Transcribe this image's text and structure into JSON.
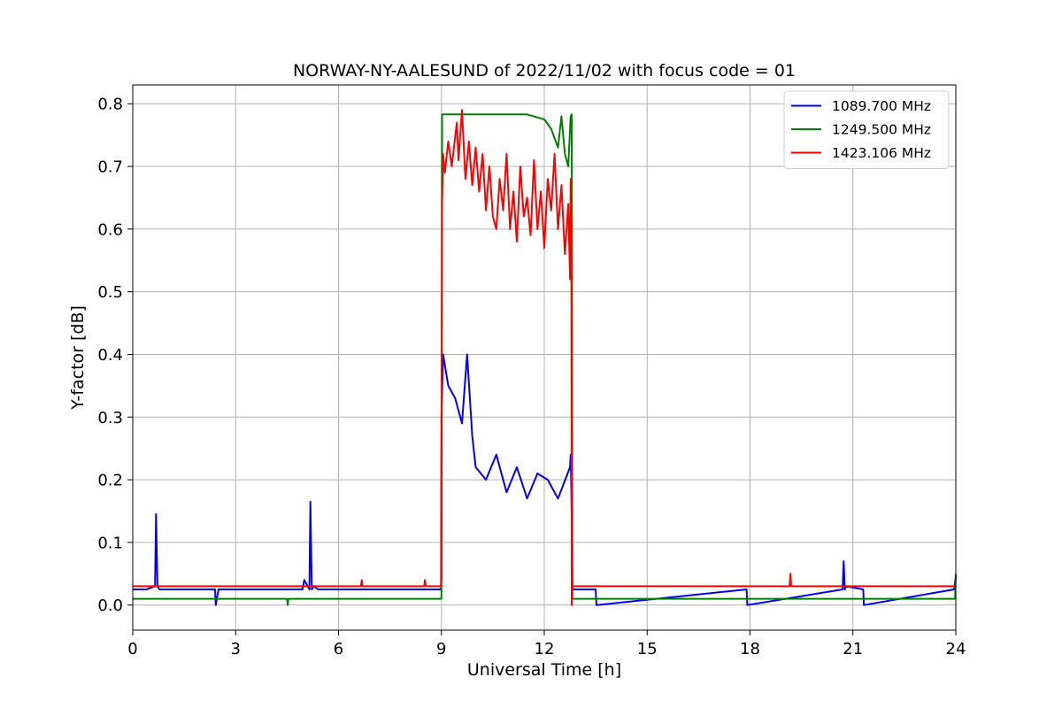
{
  "chart_data": {
    "type": "line",
    "title": "NORWAY-NY-AALESUND of 2022/11/02 with focus code = 01",
    "xlabel": "Universal Time [h]",
    "ylabel": "Y-factor [dB]",
    "xlim": [
      0,
      24
    ],
    "ylim": [
      -0.04,
      0.83
    ],
    "xticks": [
      0,
      3,
      6,
      9,
      12,
      15,
      18,
      21,
      24
    ],
    "yticks": [
      0.0,
      0.1,
      0.2,
      0.3,
      0.4,
      0.5,
      0.6,
      0.7,
      0.8
    ],
    "xtick_labels": [
      "0",
      "3",
      "6",
      "9",
      "12",
      "15",
      "18",
      "21",
      "24"
    ],
    "ytick_labels": [
      "0.0",
      "0.1",
      "0.2",
      "0.3",
      "0.4",
      "0.5",
      "0.6",
      "0.7",
      "0.8"
    ],
    "grid": true,
    "legend_position": "top-right",
    "series": [
      {
        "name": "1089.700 MHz",
        "color": "#0000ff",
        "x": [
          0,
          0.4,
          0.65,
          0.68,
          0.72,
          0.78,
          0.9,
          2.4,
          2.42,
          2.5,
          4.6,
          4.95,
          5.0,
          5.15,
          5.18,
          5.22,
          5.28,
          5.4,
          8.99,
          9.0,
          9.05,
          9.2,
          9.4,
          9.6,
          9.75,
          9.9,
          10.0,
          10.3,
          10.6,
          10.9,
          11.2,
          11.5,
          11.8,
          12.1,
          12.4,
          12.75,
          12.77,
          12.8,
          12.82,
          13.5,
          13.52,
          17.9,
          17.92,
          20.7,
          20.73,
          20.76,
          20.8,
          21.3,
          21.32,
          23.95,
          24
        ],
        "y": [
          0.025,
          0.025,
          0.03,
          0.145,
          0.03,
          0.025,
          0.025,
          0.025,
          0.0,
          0.025,
          0.025,
          0.025,
          0.04,
          0.025,
          0.165,
          0.025,
          0.03,
          0.025,
          0.025,
          0.3,
          0.4,
          0.35,
          0.33,
          0.29,
          0.4,
          0.27,
          0.22,
          0.2,
          0.24,
          0.18,
          0.22,
          0.17,
          0.21,
          0.2,
          0.17,
          0.22,
          0.24,
          0.15,
          0.025,
          0.025,
          0.0,
          0.025,
          0.0,
          0.025,
          0.07,
          0.025,
          0.03,
          0.025,
          0.0,
          0.025,
          0.045
        ]
      },
      {
        "name": "1249.500 MHz",
        "color": "#008000",
        "x": [
          0,
          4.5,
          4.52,
          4.54,
          9.0,
          9.02,
          9.05,
          11.5,
          12.0,
          12.2,
          12.4,
          12.5,
          12.6,
          12.7,
          12.77,
          12.8,
          12.82,
          23.98,
          24
        ],
        "y": [
          0.01,
          0.01,
          0.0,
          0.01,
          0.01,
          0.783,
          0.783,
          0.783,
          0.775,
          0.76,
          0.73,
          0.78,
          0.72,
          0.7,
          0.78,
          0.783,
          0.01,
          0.01,
          0.05
        ]
      },
      {
        "name": "1423.106 MHz",
        "color": "#ff0000",
        "x": [
          0,
          6.65,
          6.68,
          6.7,
          8.5,
          8.52,
          8.55,
          8.98,
          9.0,
          9.02,
          9.05,
          9.1,
          9.2,
          9.3,
          9.45,
          9.5,
          9.6,
          9.7,
          9.8,
          9.9,
          10.0,
          10.1,
          10.2,
          10.3,
          10.4,
          10.5,
          10.6,
          10.7,
          10.8,
          10.9,
          11.0,
          11.1,
          11.2,
          11.3,
          11.4,
          11.5,
          11.6,
          11.7,
          11.8,
          11.9,
          12.0,
          12.1,
          12.2,
          12.3,
          12.4,
          12.5,
          12.6,
          12.7,
          12.75,
          12.77,
          12.79,
          12.8,
          12.82,
          12.85,
          19.15,
          19.18,
          19.2,
          23.5,
          24
        ],
        "y": [
          0.03,
          0.03,
          0.04,
          0.03,
          0.03,
          0.04,
          0.03,
          0.03,
          0.04,
          0.64,
          0.72,
          0.69,
          0.74,
          0.7,
          0.77,
          0.71,
          0.79,
          0.68,
          0.74,
          0.67,
          0.73,
          0.66,
          0.72,
          0.63,
          0.7,
          0.62,
          0.6,
          0.68,
          0.63,
          0.72,
          0.6,
          0.66,
          0.58,
          0.7,
          0.62,
          0.65,
          0.59,
          0.71,
          0.6,
          0.66,
          0.57,
          0.68,
          0.63,
          0.72,
          0.6,
          0.67,
          0.56,
          0.64,
          0.52,
          0.68,
          0.6,
          0.0,
          0.03,
          0.03,
          0.03,
          0.05,
          0.03,
          0.03,
          0.03
        ]
      }
    ]
  }
}
